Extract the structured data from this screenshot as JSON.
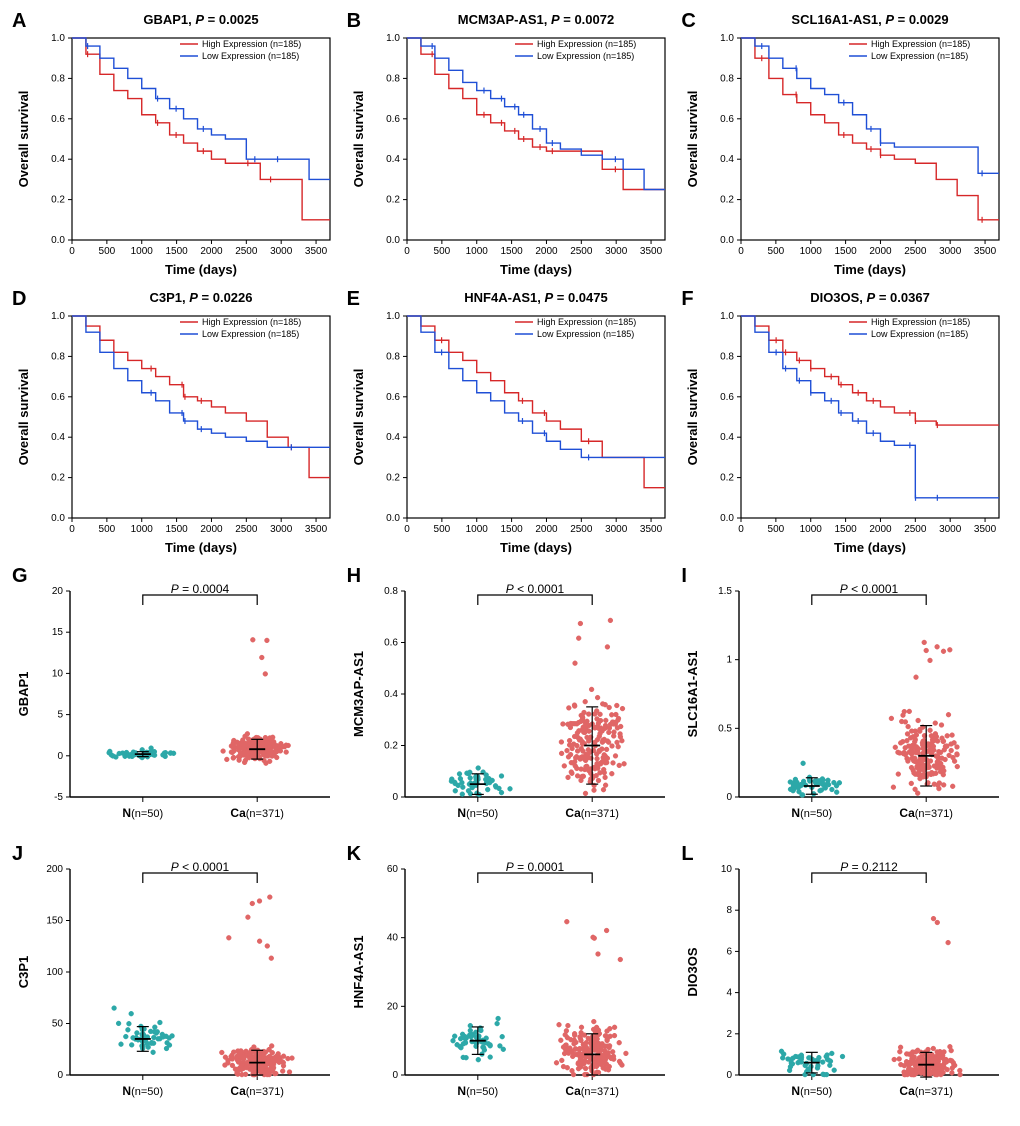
{
  "colors": {
    "high": "#d62728",
    "low": "#1f4fd6",
    "bg": "#ffffff",
    "axis": "#000000",
    "normal_dot": "#2ca8a8",
    "cancer_dot": "#e06666"
  },
  "survival_common": {
    "xlabel": "Time (days)",
    "ylabel": "Overall survival",
    "xlim": [
      0,
      3700
    ],
    "xticks": [
      0,
      500,
      1000,
      1500,
      2000,
      2500,
      3000,
      3500
    ],
    "yticks": [
      0.0,
      0.2,
      0.4,
      0.6,
      0.8,
      1.0
    ],
    "legend_high": "High Expression (n=185)",
    "legend_low": "Low Expression (n=185)"
  },
  "expr_common": {
    "x_normal_label": "N",
    "x_normal_n": "(n=50)",
    "x_cancer_label": "Ca",
    "x_cancer_n": "(n=371)"
  },
  "panels": {
    "A": {
      "gene": "GBAP1",
      "pval": "0.0025",
      "high": [
        [
          0,
          1.0
        ],
        [
          200,
          0.92
        ],
        [
          400,
          0.82
        ],
        [
          600,
          0.74
        ],
        [
          800,
          0.7
        ],
        [
          1000,
          0.62
        ],
        [
          1200,
          0.58
        ],
        [
          1400,
          0.52
        ],
        [
          1600,
          0.48
        ],
        [
          1800,
          0.44
        ],
        [
          2000,
          0.4
        ],
        [
          2200,
          0.38
        ],
        [
          2400,
          0.38
        ],
        [
          2700,
          0.3
        ],
        [
          3000,
          0.3
        ],
        [
          3300,
          0.1
        ],
        [
          3700,
          0.1
        ]
      ],
      "low": [
        [
          0,
          1.0
        ],
        [
          200,
          0.96
        ],
        [
          400,
          0.9
        ],
        [
          600,
          0.85
        ],
        [
          800,
          0.8
        ],
        [
          1000,
          0.75
        ],
        [
          1200,
          0.7
        ],
        [
          1400,
          0.65
        ],
        [
          1600,
          0.6
        ],
        [
          1800,
          0.55
        ],
        [
          2000,
          0.52
        ],
        [
          2200,
          0.5
        ],
        [
          2500,
          0.4
        ],
        [
          2800,
          0.4
        ],
        [
          3100,
          0.4
        ],
        [
          3400,
          0.3
        ],
        [
          3700,
          0.3
        ]
      ]
    },
    "B": {
      "gene": "MCM3AP-AS1",
      "pval": "0.0072",
      "high": [
        [
          0,
          1.0
        ],
        [
          200,
          0.92
        ],
        [
          400,
          0.82
        ],
        [
          600,
          0.75
        ],
        [
          800,
          0.7
        ],
        [
          1000,
          0.62
        ],
        [
          1200,
          0.58
        ],
        [
          1400,
          0.54
        ],
        [
          1600,
          0.5
        ],
        [
          1800,
          0.46
        ],
        [
          2000,
          0.44
        ],
        [
          2200,
          0.44
        ],
        [
          2500,
          0.44
        ],
        [
          2800,
          0.35
        ],
        [
          3100,
          0.25
        ],
        [
          3700,
          0.25
        ]
      ],
      "low": [
        [
          0,
          1.0
        ],
        [
          200,
          0.96
        ],
        [
          400,
          0.9
        ],
        [
          600,
          0.84
        ],
        [
          800,
          0.78
        ],
        [
          1000,
          0.74
        ],
        [
          1200,
          0.7
        ],
        [
          1400,
          0.66
        ],
        [
          1600,
          0.62
        ],
        [
          1800,
          0.55
        ],
        [
          2000,
          0.48
        ],
        [
          2200,
          0.45
        ],
        [
          2500,
          0.42
        ],
        [
          2800,
          0.4
        ],
        [
          3100,
          0.35
        ],
        [
          3400,
          0.25
        ],
        [
          3700,
          0.25
        ]
      ]
    },
    "C": {
      "gene": "SCL16A1-AS1",
      "pval": "0.0029",
      "high": [
        [
          0,
          1.0
        ],
        [
          200,
          0.9
        ],
        [
          400,
          0.8
        ],
        [
          600,
          0.72
        ],
        [
          800,
          0.68
        ],
        [
          1000,
          0.62
        ],
        [
          1200,
          0.58
        ],
        [
          1400,
          0.52
        ],
        [
          1600,
          0.48
        ],
        [
          1800,
          0.45
        ],
        [
          2000,
          0.42
        ],
        [
          2200,
          0.4
        ],
        [
          2500,
          0.38
        ],
        [
          2800,
          0.3
        ],
        [
          3100,
          0.22
        ],
        [
          3400,
          0.1
        ],
        [
          3700,
          0.1
        ]
      ],
      "low": [
        [
          0,
          1.0
        ],
        [
          200,
          0.96
        ],
        [
          400,
          0.9
        ],
        [
          600,
          0.85
        ],
        [
          800,
          0.8
        ],
        [
          1000,
          0.75
        ],
        [
          1200,
          0.72
        ],
        [
          1400,
          0.68
        ],
        [
          1600,
          0.62
        ],
        [
          1800,
          0.55
        ],
        [
          2000,
          0.48
        ],
        [
          2200,
          0.46
        ],
        [
          2500,
          0.46
        ],
        [
          2800,
          0.46
        ],
        [
          3100,
          0.46
        ],
        [
          3400,
          0.33
        ],
        [
          3700,
          0.33
        ]
      ]
    },
    "D": {
      "gene": "C3P1",
      "pval": "0.0226",
      "high": [
        [
          0,
          1.0
        ],
        [
          200,
          0.95
        ],
        [
          400,
          0.88
        ],
        [
          600,
          0.82
        ],
        [
          800,
          0.78
        ],
        [
          1000,
          0.74
        ],
        [
          1200,
          0.7
        ],
        [
          1400,
          0.66
        ],
        [
          1600,
          0.6
        ],
        [
          1800,
          0.58
        ],
        [
          2000,
          0.55
        ],
        [
          2200,
          0.52
        ],
        [
          2500,
          0.48
        ],
        [
          2800,
          0.4
        ],
        [
          3100,
          0.35
        ],
        [
          3400,
          0.2
        ],
        [
          3700,
          0.2
        ]
      ],
      "low": [
        [
          0,
          1.0
        ],
        [
          200,
          0.92
        ],
        [
          400,
          0.82
        ],
        [
          600,
          0.74
        ],
        [
          800,
          0.68
        ],
        [
          1000,
          0.62
        ],
        [
          1200,
          0.58
        ],
        [
          1400,
          0.52
        ],
        [
          1600,
          0.48
        ],
        [
          1800,
          0.44
        ],
        [
          2000,
          0.42
        ],
        [
          2200,
          0.4
        ],
        [
          2500,
          0.38
        ],
        [
          2800,
          0.35
        ],
        [
          3100,
          0.35
        ],
        [
          3400,
          0.35
        ],
        [
          3700,
          0.35
        ]
      ]
    },
    "E": {
      "gene": "HNF4A-AS1",
      "pval": "0.0475",
      "high": [
        [
          0,
          1.0
        ],
        [
          200,
          0.95
        ],
        [
          400,
          0.88
        ],
        [
          600,
          0.82
        ],
        [
          800,
          0.78
        ],
        [
          1000,
          0.72
        ],
        [
          1200,
          0.68
        ],
        [
          1400,
          0.62
        ],
        [
          1600,
          0.58
        ],
        [
          1800,
          0.52
        ],
        [
          2000,
          0.48
        ],
        [
          2200,
          0.44
        ],
        [
          2500,
          0.38
        ],
        [
          2800,
          0.3
        ],
        [
          3100,
          0.3
        ],
        [
          3400,
          0.15
        ],
        [
          3700,
          0.15
        ]
      ],
      "low": [
        [
          0,
          1.0
        ],
        [
          200,
          0.92
        ],
        [
          400,
          0.82
        ],
        [
          600,
          0.74
        ],
        [
          800,
          0.68
        ],
        [
          1000,
          0.62
        ],
        [
          1200,
          0.58
        ],
        [
          1400,
          0.52
        ],
        [
          1600,
          0.48
        ],
        [
          1800,
          0.42
        ],
        [
          2000,
          0.38
        ],
        [
          2200,
          0.34
        ],
        [
          2500,
          0.3
        ],
        [
          2800,
          0.3
        ],
        [
          3100,
          0.3
        ],
        [
          3400,
          0.3
        ],
        [
          3700,
          0.3
        ]
      ]
    },
    "F": {
      "gene": "DIO3OS",
      "pval": "0.0367",
      "high": [
        [
          0,
          1.0
        ],
        [
          200,
          0.95
        ],
        [
          400,
          0.88
        ],
        [
          600,
          0.82
        ],
        [
          800,
          0.78
        ],
        [
          1000,
          0.74
        ],
        [
          1200,
          0.7
        ],
        [
          1400,
          0.66
        ],
        [
          1600,
          0.62
        ],
        [
          1800,
          0.58
        ],
        [
          2000,
          0.55
        ],
        [
          2200,
          0.52
        ],
        [
          2500,
          0.48
        ],
        [
          2800,
          0.46
        ],
        [
          3100,
          0.46
        ],
        [
          3400,
          0.46
        ],
        [
          3700,
          0.46
        ]
      ],
      "low": [
        [
          0,
          1.0
        ],
        [
          200,
          0.92
        ],
        [
          400,
          0.82
        ],
        [
          600,
          0.74
        ],
        [
          800,
          0.68
        ],
        [
          1000,
          0.62
        ],
        [
          1200,
          0.58
        ],
        [
          1400,
          0.52
        ],
        [
          1600,
          0.48
        ],
        [
          1800,
          0.42
        ],
        [
          2000,
          0.38
        ],
        [
          2200,
          0.36
        ],
        [
          2500,
          0.1
        ],
        [
          2800,
          0.1
        ],
        [
          3100,
          0.1
        ],
        [
          3400,
          0.1
        ],
        [
          3700,
          0.1
        ]
      ]
    },
    "G": {
      "ylabel": "GBAP1",
      "ptext": "= 0.0004",
      "ylim": [
        -5,
        20
      ],
      "yticks": [
        -5,
        0,
        5,
        10,
        15,
        20
      ],
      "N_mean": 0.2,
      "N_spread": 0.3,
      "N_max": 1.0,
      "Ca_mean": 0.8,
      "Ca_spread": 1.2,
      "Ca_max": 15.5
    },
    "H": {
      "ylabel": "MCM3AP-AS1",
      "ptext": "< 0.0001",
      "ylim": [
        0.0,
        0.8
      ],
      "yticks": [
        0.0,
        0.2,
        0.4,
        0.6,
        0.8
      ],
      "N_mean": 0.05,
      "N_spread": 0.04,
      "N_max": 0.15,
      "Ca_mean": 0.2,
      "Ca_spread": 0.15,
      "Ca_max": 0.73
    },
    "I": {
      "ylabel": "SLC16A1-AS1",
      "ptext": "< 0.0001",
      "ylim": [
        0.0,
        1.5
      ],
      "yticks": [
        0.0,
        0.5,
        1.0,
        1.5
      ],
      "N_mean": 0.08,
      "N_spread": 0.06,
      "N_max": 0.25,
      "Ca_mean": 0.3,
      "Ca_spread": 0.22,
      "Ca_max": 1.2
    },
    "J": {
      "ylabel": "C3P1",
      "ptext": "< 0.0001",
      "ylim": [
        0,
        200
      ],
      "yticks": [
        0,
        50,
        100,
        150,
        200
      ],
      "N_mean": 35,
      "N_spread": 12,
      "N_max": 70,
      "Ca_mean": 12,
      "Ca_spread": 12,
      "Ca_max": 180
    },
    "K": {
      "ylabel": "HNF4A-AS1",
      "ptext": "= 0.0001",
      "ylim": [
        0,
        60
      ],
      "yticks": [
        0,
        20,
        40,
        60
      ],
      "N_mean": 10,
      "N_spread": 4,
      "N_max": 20,
      "Ca_mean": 6,
      "Ca_spread": 6,
      "Ca_max": 50
    },
    "L": {
      "ylabel": "DIO3OS",
      "ptext": "= 0.2112",
      "ylim": [
        0,
        10
      ],
      "yticks": [
        0,
        2,
        4,
        6,
        8,
        10
      ],
      "N_mean": 0.6,
      "N_spread": 0.5,
      "N_max": 2.0,
      "Ca_mean": 0.5,
      "Ca_spread": 0.6,
      "Ca_max": 8.1
    }
  },
  "panel_order": [
    "A",
    "B",
    "C",
    "D",
    "E",
    "F",
    "G",
    "H",
    "I",
    "J",
    "K",
    "L"
  ]
}
